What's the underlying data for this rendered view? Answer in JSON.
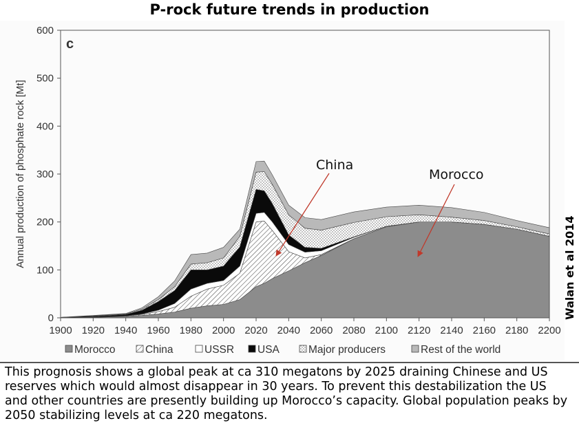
{
  "header": {
    "title": "P-rock future trends in production"
  },
  "credit": "Walan et al 2014",
  "caption": "This prognosis shows a global peak at ca 310 megatons by 2025 draining Chinese and US reserves which would almost disappear in 30 years. To prevent this destabilization the US and other countries are presently building up Morocco’s capacity. Global population peaks by 2050 stabilizing levels at ca 220 megatons.",
  "colors": {
    "morocco": "#8c8c8c",
    "china": "#ffffff",
    "ussr": "#ffffff",
    "usa": "#0a0a0a",
    "major_producers": "#ffffff",
    "rest_of_world": "#b9b9b9",
    "annotation_arrow": "#c0392b"
  },
  "chart_data": {
    "type": "area",
    "stacked": true,
    "panel_label": "c",
    "ylabel": "Annual production of phosphate rock [Mt]",
    "xlabel": "",
    "xlim": [
      1900,
      2200
    ],
    "ylim": [
      0,
      600
    ],
    "x_ticks": [
      1900,
      1920,
      1940,
      1960,
      1980,
      2000,
      2020,
      2040,
      2060,
      2080,
      2100,
      2120,
      2140,
      2160,
      2180,
      2200
    ],
    "y_ticks": [
      0,
      100,
      200,
      300,
      400,
      500,
      600
    ],
    "grid": false,
    "legend_position": "bottom",
    "x": [
      1900,
      1920,
      1940,
      1950,
      1960,
      1970,
      1980,
      1990,
      2000,
      2010,
      2020,
      2025,
      2030,
      2040,
      2050,
      2060,
      2080,
      2100,
      2120,
      2140,
      2160,
      2180,
      2200
    ],
    "series": [
      {
        "name": "Morocco",
        "pattern": "solid-gray",
        "values": [
          0,
          1,
          3,
          5,
          8,
          12,
          20,
          25,
          28,
          38,
          65,
          72,
          82,
          98,
          115,
          130,
          165,
          190,
          200,
          200,
          195,
          185,
          170
        ]
      },
      {
        "name": "China",
        "pattern": "hatched",
        "values": [
          0,
          0,
          1,
          2,
          5,
          10,
          25,
          35,
          40,
          55,
          135,
          130,
          100,
          40,
          10,
          2,
          0,
          0,
          0,
          0,
          0,
          0,
          0
        ]
      },
      {
        "name": "USSR",
        "pattern": "white",
        "values": [
          0,
          0,
          0,
          1,
          3,
          8,
          15,
          12,
          10,
          15,
          18,
          18,
          18,
          15,
          12,
          8,
          3,
          1,
          0,
          0,
          0,
          0,
          0
        ]
      },
      {
        "name": "USA",
        "pattern": "solid-black",
        "values": [
          1,
          2,
          3,
          8,
          18,
          27,
          40,
          28,
          30,
          40,
          50,
          45,
          38,
          20,
          10,
          5,
          1,
          0,
          0,
          0,
          0,
          0,
          0
        ]
      },
      {
        "name": "Major producers",
        "pattern": "dotted",
        "values": [
          0,
          1,
          1,
          2,
          4,
          8,
          12,
          15,
          17,
          22,
          36,
          40,
          40,
          42,
          40,
          38,
          30,
          20,
          15,
          10,
          8,
          5,
          5
        ]
      },
      {
        "name": "Rest of the world",
        "pattern": "light-gray",
        "values": [
          0,
          1,
          1,
          3,
          6,
          12,
          20,
          20,
          22,
          15,
          22,
          22,
          20,
          20,
          22,
          22,
          22,
          20,
          20,
          20,
          17,
          13,
          13
        ]
      }
    ],
    "annotations": [
      {
        "text": "China",
        "points_to": "China"
      },
      {
        "text": "Morocco",
        "points_to": "Morocco"
      }
    ]
  }
}
